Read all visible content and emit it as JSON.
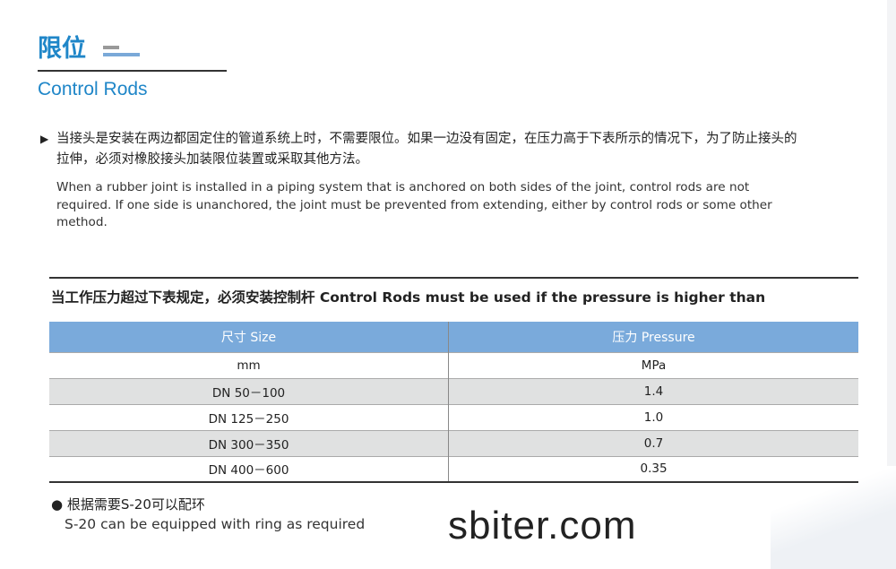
{
  "header": {
    "title_cn": "限位",
    "title_en": "Control Rods"
  },
  "intro": {
    "cn": "当接头是安装在两边都固定住的管道系统上时，不需要限位。如果一边没有固定，在压力高于下表所示的情况下，为了防止接头的拉伸，必须对橡胶接头加装限位装置或采取其他方法。",
    "en": "When a rubber joint is installed in a piping system that is anchored on both sides of the joint, control rods are not required. If one side is unanchored, the joint must be prevented from extending, either by control rods or some other method."
  },
  "table": {
    "heading": "当工作压力超过下表规定，必须安装控制杆 Control Rods must be used if the pressure is higher than",
    "columns": [
      "尺寸 Size",
      "压力 Pressure"
    ],
    "units": [
      "mm",
      "MPa"
    ],
    "rows": [
      [
        "DN 50－100",
        "1.4"
      ],
      [
        "DN 125－250",
        "1.0"
      ],
      [
        "DN 300－350",
        "0.7"
      ],
      [
        "DN 400－600",
        "0.35"
      ]
    ]
  },
  "note": {
    "cn": "根据需要S-20可以配环",
    "en": "S-20 can be equipped with ring as required"
  },
  "watermark": "sbiter.com",
  "colors": {
    "accent": "#1f86c8",
    "table_header": "#7aaadb",
    "row_alt": "#e0e1e1"
  }
}
